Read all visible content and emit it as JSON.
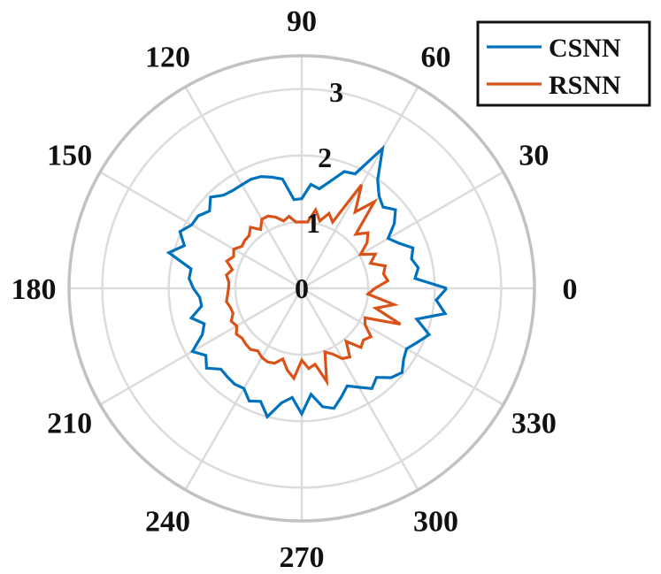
{
  "chart_data": {
    "type": "line",
    "coordinate_system": "polar",
    "theta_unit": "degrees",
    "theta_ticks": [
      0,
      30,
      60,
      90,
      120,
      150,
      180,
      210,
      240,
      270,
      300,
      330
    ],
    "theta_tick_labels": [
      "0",
      "30",
      "60",
      "90",
      "120",
      "150",
      "180",
      "210",
      "240",
      "270",
      "300",
      "330"
    ],
    "r_ticks": [
      0,
      1,
      2,
      3
    ],
    "r_tick_labels": [
      "0",
      "1",
      "2",
      "3"
    ],
    "rlim": [
      0,
      3.5
    ],
    "grid": true,
    "legend": "top-right",
    "series": [
      {
        "name": "CSNN",
        "color": "#0072BD",
        "theta": [
          0,
          5,
          10,
          15,
          20,
          25,
          30,
          35,
          40,
          45,
          50,
          55,
          60,
          65,
          70,
          75,
          80,
          85,
          90,
          95,
          100,
          105,
          110,
          115,
          120,
          125,
          130,
          135,
          140,
          145,
          150,
          155,
          160,
          165,
          170,
          175,
          180,
          185,
          190,
          195,
          200,
          205,
          210,
          215,
          220,
          225,
          230,
          235,
          240,
          245,
          250,
          255,
          260,
          265,
          270,
          275,
          280,
          285,
          290,
          295,
          300,
          305,
          310,
          315,
          320,
          325,
          330,
          335,
          340,
          345,
          350,
          355,
          360
        ],
        "r": [
          2.18,
          1.71,
          1.78,
          1.71,
          1.78,
          1.61,
          1.5,
          1.7,
          1.84,
          1.73,
          1.81,
          1.99,
          2.43,
          1.9,
          1.87,
          1.67,
          1.52,
          1.57,
          1.35,
          1.34,
          1.67,
          1.73,
          1.79,
          1.81,
          1.8,
          1.8,
          1.83,
          1.94,
          1.81,
          1.9,
          1.91,
          2.02,
          1.88,
          2.07,
          1.69,
          1.7,
          1.63,
          1.54,
          1.53,
          1.72,
          1.56,
          1.65,
          1.9,
          1.76,
          1.87,
          1.72,
          1.74,
          1.76,
          1.74,
          1.87,
          1.81,
          2.0,
          1.75,
          1.65,
          1.89,
          1.6,
          1.81,
          1.87,
          1.74,
          1.62,
          1.72,
          1.84,
          1.75,
          1.9,
          1.97,
          1.87,
          1.82,
          1.92,
          2.04,
          1.79,
          2.19,
          2.03,
          2.18
        ]
      },
      {
        "name": "RSNN",
        "color": "#D95319",
        "theta": [
          0,
          5,
          10,
          15,
          20,
          25,
          30,
          35,
          40,
          45,
          50,
          55,
          60,
          65,
          70,
          75,
          80,
          85,
          90,
          95,
          100,
          105,
          110,
          115,
          120,
          125,
          130,
          135,
          140,
          145,
          150,
          155,
          160,
          165,
          170,
          175,
          180,
          185,
          190,
          195,
          200,
          205,
          210,
          215,
          220,
          225,
          230,
          235,
          240,
          245,
          250,
          255,
          260,
          265,
          270,
          275,
          280,
          285,
          290,
          295,
          300,
          305,
          310,
          315,
          320,
          325,
          330,
          335,
          340,
          345,
          350,
          355,
          360
        ],
        "r": [
          1.1,
          1.3,
          1.25,
          1.3,
          1.1,
          1.22,
          1.02,
          1.2,
          1.3,
          1.15,
          1.7,
          1.4,
          1.8,
          1.1,
          1.2,
          1.05,
          1.2,
          1.0,
          1.0,
          1.0,
          1.1,
          1.05,
          1.14,
          1.2,
          1.2,
          1.08,
          1.2,
          1.12,
          1.12,
          1.1,
          1.18,
          1.13,
          1.2,
          1.08,
          1.15,
          1.1,
          1.1,
          1.12,
          1.15,
          1.11,
          1.1,
          1.17,
          1.13,
          1.2,
          1.17,
          1.19,
          1.2,
          1.15,
          1.2,
          1.22,
          1.2,
          1.1,
          1.25,
          1.36,
          1.08,
          1.21,
          1.16,
          1.45,
          1.02,
          1.09,
          1.22,
          1.26,
          1.04,
          1.26,
          1.21,
          1.27,
          1.1,
          1.05,
          1.58,
          1.15,
          1.41,
          1.0,
          1.1
        ]
      }
    ]
  }
}
